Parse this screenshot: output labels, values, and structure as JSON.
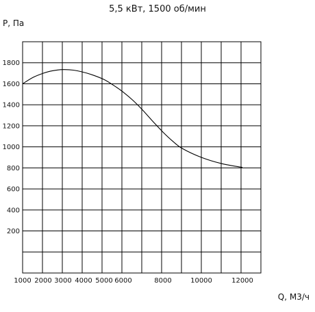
{
  "chart_data": {
    "type": "line",
    "title": "5,5 кВт, 1500 об/мин",
    "ylabel": "P, Па",
    "xlabel": "Q, М3/ч",
    "x_tick_labels": [
      "1000",
      "2000",
      "3000",
      "4000",
      "5000",
      "6000",
      "8000",
      "10000",
      "12000"
    ],
    "y_tick_labels": [
      "200",
      "400",
      "600",
      "800",
      "1000",
      "1200",
      "1400",
      "1600",
      "1800"
    ],
    "ylim": [
      -200,
      2000
    ],
    "grid": true,
    "series": [
      {
        "values": [
          {
            "x": 1000,
            "y": 1600
          },
          {
            "x": 1500,
            "y": 1660
          },
          {
            "x": 2000,
            "y": 1700
          },
          {
            "x": 2500,
            "y": 1725
          },
          {
            "x": 3000,
            "y": 1735
          },
          {
            "x": 3500,
            "y": 1730
          },
          {
            "x": 4000,
            "y": 1710
          },
          {
            "x": 4500,
            "y": 1680
          },
          {
            "x": 5000,
            "y": 1640
          },
          {
            "x": 5500,
            "y": 1585
          },
          {
            "x": 6000,
            "y": 1520
          },
          {
            "x": 6500,
            "y": 1440
          },
          {
            "x": 7000,
            "y": 1345
          },
          {
            "x": 7500,
            "y": 1240
          },
          {
            "x": 8000,
            "y": 1140
          },
          {
            "x": 8500,
            "y": 1055
          },
          {
            "x": 9000,
            "y": 985
          },
          {
            "x": 10000,
            "y": 900
          },
          {
            "x": 11000,
            "y": 840
          },
          {
            "x": 12000,
            "y": 805
          }
        ]
      }
    ]
  }
}
